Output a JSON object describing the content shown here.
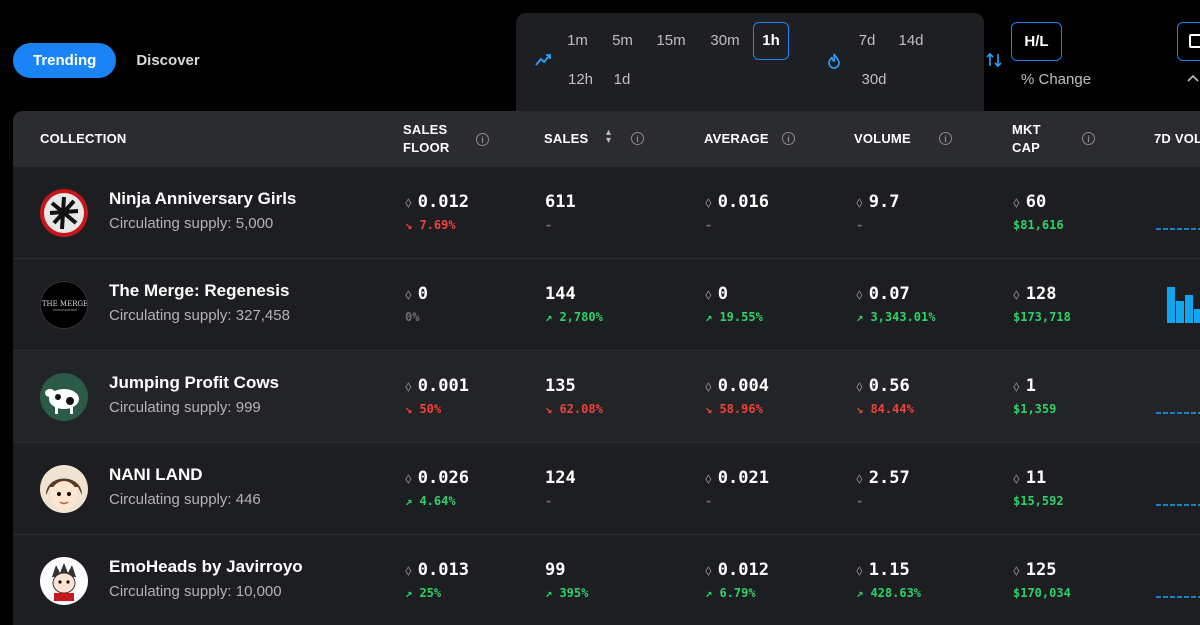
{
  "tabs": [
    {
      "label": "Trending",
      "active": true
    },
    {
      "label": "Discover",
      "active": false
    }
  ],
  "time_filters": {
    "row1": [
      "1m",
      "5m",
      "15m",
      "30m",
      "1h"
    ],
    "row2": [
      "12h",
      "1d"
    ],
    "long_row1": [
      "7d",
      "14d"
    ],
    "long_row2": [
      "30d"
    ],
    "active": "1h"
  },
  "toggle": {
    "hl_label": "H/L",
    "pct_label": "% Change"
  },
  "columns": {
    "collection": "COLLECTION",
    "sales_floor_1": "SALES",
    "sales_floor_2": "FLOOR",
    "sales": "SALES",
    "average": "AVERAGE",
    "volume": "VOLUME",
    "mkt_cap_1": "MKT",
    "mkt_cap_2": "CAP",
    "seven_d": "7D VOL"
  },
  "eth_symbol": "⬨",
  "rows": [
    {
      "name": "Ninja Anniversary Girls",
      "supply": "Circulating supply: 5,000",
      "floor": "0.012",
      "floor_change": "↘ 7.69%",
      "sales": "611",
      "sales_change": "-",
      "average": "0.016",
      "average_change": "-",
      "volume": "9.7",
      "volume_change": "-",
      "mkt_cap": "60",
      "mkt_cap_usd": "$81,616"
    },
    {
      "name": "The Merge: Regenesis",
      "supply": "Circulating supply: 327,458",
      "floor": "0",
      "floor_change": "0%",
      "sales": "144",
      "sales_change": "↗ 2,780%",
      "average": "0",
      "average_change": "↗ 19.55%",
      "volume": "0.07",
      "volume_change": "↗ 3,343.01%",
      "mkt_cap": "128",
      "mkt_cap_usd": "$173,718"
    },
    {
      "name": "Jumping Profit Cows",
      "supply": "Circulating supply: 999",
      "floor": "0.001",
      "floor_change": "↘ 50%",
      "sales": "135",
      "sales_change": "↘ 62.08%",
      "average": "0.004",
      "average_change": "↘ 58.96%",
      "volume": "0.56",
      "volume_change": "↘ 84.44%",
      "mkt_cap": "1",
      "mkt_cap_usd": "$1,359"
    },
    {
      "name": "NANI LAND",
      "supply": "Circulating supply: 446",
      "floor": "0.026",
      "floor_change": "↗ 4.64%",
      "sales": "124",
      "sales_change": "-",
      "average": "0.021",
      "average_change": "-",
      "volume": "2.57",
      "volume_change": "-",
      "mkt_cap": "11",
      "mkt_cap_usd": "$15,592"
    },
    {
      "name": "EmoHeads by Javirroyo",
      "supply": "Circulating supply: 10,000",
      "floor": "0.013",
      "floor_change": "↗ 25%",
      "sales": "99",
      "sales_change": "↗ 395%",
      "average": "0.012",
      "average_change": "↗ 6.79%",
      "volume": "1.15",
      "volume_change": "↗ 428.63%",
      "mkt_cap": "125",
      "mkt_cap_usd": "$170,034"
    }
  ],
  "colors": {
    "accent": "#1a83f5",
    "up": "#2fd06a",
    "down": "#f0413e",
    "spark": "#12a6f0"
  }
}
